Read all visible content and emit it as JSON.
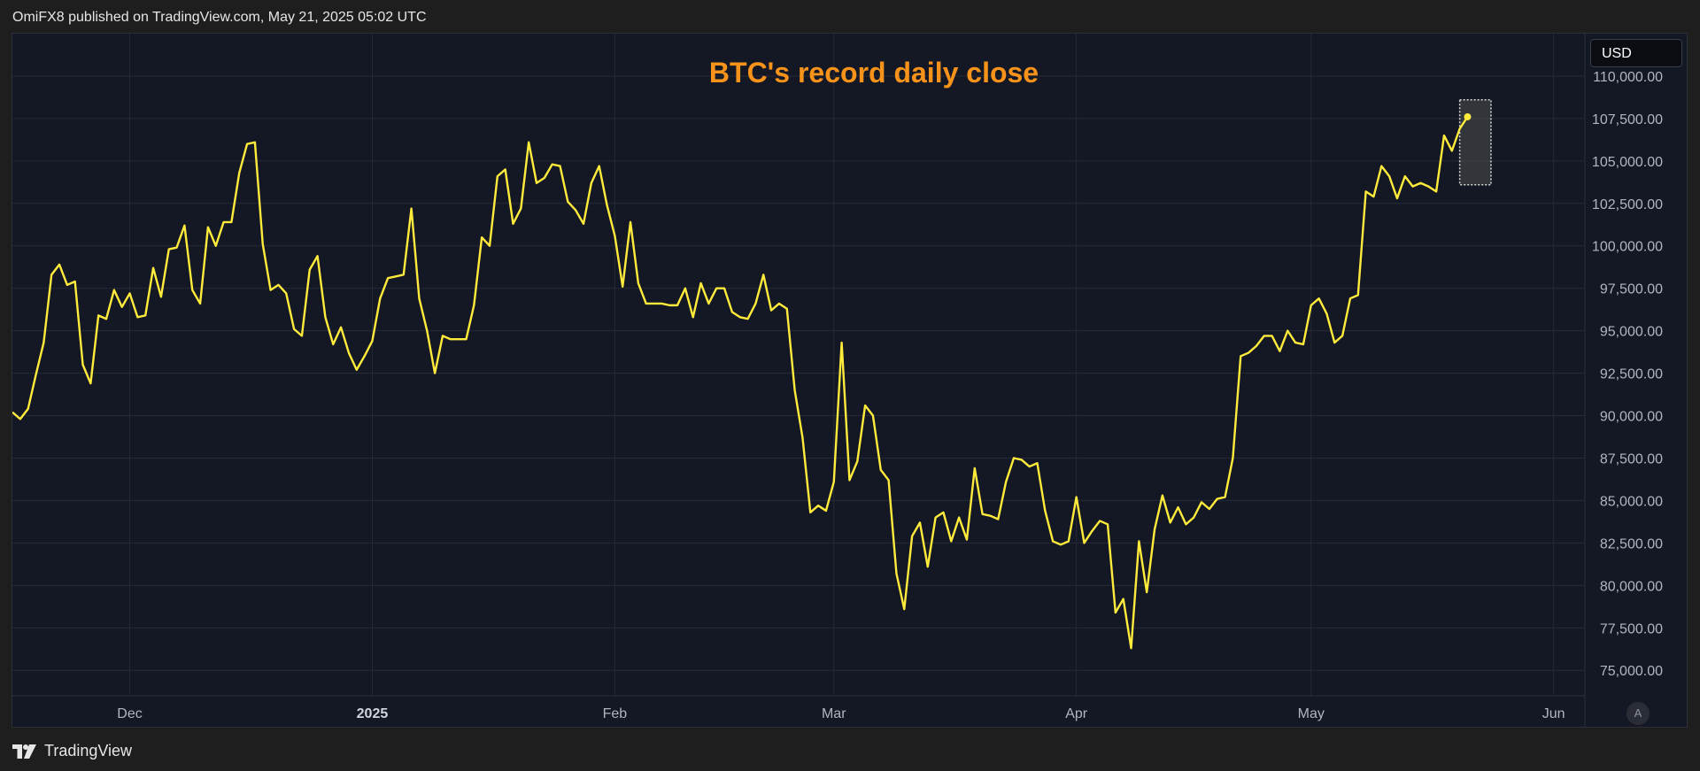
{
  "header": {
    "publisher_line": "OmiFX8 published on TradingView.com, May 21, 2025 05:02 UTC"
  },
  "toolbar": {
    "currency_label": "USD",
    "auto_scale_label": "A"
  },
  "footer": {
    "brand_name": "TradingView"
  },
  "colors": {
    "line": "#ffeb3b",
    "title": "#f7931a",
    "background": "#141824",
    "grid": "#252a36",
    "axis_text": "#b2b5be"
  },
  "chart_data": {
    "type": "line",
    "title": "BTC's record daily close",
    "xlabel": "",
    "ylabel": "",
    "grid": true,
    "x_tick_labels": [
      {
        "date": "2024-12-01",
        "label": "Dec",
        "bold": false
      },
      {
        "date": "2025-01-01",
        "label": "2025",
        "bold": true
      },
      {
        "date": "2025-02-01",
        "label": "Feb",
        "bold": false
      },
      {
        "date": "2025-03-01",
        "label": "Mar",
        "bold": false
      },
      {
        "date": "2025-04-01",
        "label": "Apr",
        "bold": false
      },
      {
        "date": "2025-05-01",
        "label": "May",
        "bold": false
      },
      {
        "date": "2025-06-01",
        "label": "Jun",
        "bold": false
      }
    ],
    "y_ticks": [
      75000,
      77500,
      80000,
      82500,
      85000,
      87500,
      90000,
      92500,
      95000,
      97500,
      100000,
      102500,
      105000,
      107500,
      110000
    ],
    "y_tick_labels": [
      "75,000.00",
      "77,500.00",
      "80,000.00",
      "82,500.00",
      "85,000.00",
      "87,500.00",
      "90,000.00",
      "92,500.00",
      "95,000.00",
      "97,500.00",
      "100,000.00",
      "102,500.00",
      "105,000.00",
      "107,500.00",
      "110,000.00"
    ],
    "xlim": [
      "2024-11-16",
      "2025-06-05"
    ],
    "ylim": [
      73500,
      112500
    ],
    "highlight": {
      "x_start": "2025-05-20",
      "x_end": "2025-05-24",
      "y_low": 103600,
      "y_high": 108600
    },
    "series": [
      {
        "x": [
          "2024-11-16",
          "2024-11-17",
          "2024-11-18",
          "2024-11-19",
          "2024-11-20",
          "2024-11-21",
          "2024-11-22",
          "2024-11-23",
          "2024-11-24",
          "2024-11-25",
          "2024-11-26",
          "2024-11-27",
          "2024-11-28",
          "2024-11-29",
          "2024-11-30",
          "2024-12-01",
          "2024-12-02",
          "2024-12-03",
          "2024-12-04",
          "2024-12-05",
          "2024-12-06",
          "2024-12-07",
          "2024-12-08",
          "2024-12-09",
          "2024-12-10",
          "2024-12-11",
          "2024-12-12",
          "2024-12-13",
          "2024-12-14",
          "2024-12-15",
          "2024-12-16",
          "2024-12-17",
          "2024-12-18",
          "2024-12-19",
          "2024-12-20",
          "2024-12-21",
          "2024-12-22",
          "2024-12-23",
          "2024-12-24",
          "2024-12-25",
          "2024-12-26",
          "2024-12-27",
          "2024-12-28",
          "2024-12-29",
          "2024-12-30",
          "2024-12-31",
          "2025-01-01",
          "2025-01-02",
          "2025-01-03",
          "2025-01-04",
          "2025-01-05",
          "2025-01-06",
          "2025-01-07",
          "2025-01-08",
          "2025-01-09",
          "2025-01-10",
          "2025-01-11",
          "2025-01-12",
          "2025-01-13",
          "2025-01-14",
          "2025-01-15",
          "2025-01-16",
          "2025-01-17",
          "2025-01-18",
          "2025-01-19",
          "2025-01-20",
          "2025-01-21",
          "2025-01-22",
          "2025-01-23",
          "2025-01-24",
          "2025-01-25",
          "2025-01-26",
          "2025-01-27",
          "2025-01-28",
          "2025-01-29",
          "2025-01-30",
          "2025-01-31",
          "2025-02-01",
          "2025-02-02",
          "2025-02-03",
          "2025-02-04",
          "2025-02-05",
          "2025-02-06",
          "2025-02-07",
          "2025-02-08",
          "2025-02-09",
          "2025-02-10",
          "2025-02-11",
          "2025-02-12",
          "2025-02-13",
          "2025-02-14",
          "2025-02-15",
          "2025-02-16",
          "2025-02-17",
          "2025-02-18",
          "2025-02-19",
          "2025-02-20",
          "2025-02-21",
          "2025-02-22",
          "2025-02-23",
          "2025-02-24",
          "2025-02-25",
          "2025-02-26",
          "2025-02-27",
          "2025-02-28",
          "2025-03-01",
          "2025-03-02",
          "2025-03-03",
          "2025-03-04",
          "2025-03-05",
          "2025-03-06",
          "2025-03-07",
          "2025-03-08",
          "2025-03-09",
          "2025-03-10",
          "2025-03-11",
          "2025-03-12",
          "2025-03-13",
          "2025-03-14",
          "2025-03-15",
          "2025-03-16",
          "2025-03-17",
          "2025-03-18",
          "2025-03-19",
          "2025-03-20",
          "2025-03-21",
          "2025-03-22",
          "2025-03-23",
          "2025-03-24",
          "2025-03-25",
          "2025-03-26",
          "2025-03-27",
          "2025-03-28",
          "2025-03-29",
          "2025-03-30",
          "2025-03-31",
          "2025-04-01",
          "2025-04-02",
          "2025-04-03",
          "2025-04-04",
          "2025-04-05",
          "2025-04-06",
          "2025-04-07",
          "2025-04-08",
          "2025-04-09",
          "2025-04-10",
          "2025-04-11",
          "2025-04-12",
          "2025-04-13",
          "2025-04-14",
          "2025-04-15",
          "2025-04-16",
          "2025-04-17",
          "2025-04-18",
          "2025-04-19",
          "2025-04-20",
          "2025-04-21",
          "2025-04-22",
          "2025-04-23",
          "2025-04-24",
          "2025-04-25",
          "2025-04-26",
          "2025-04-27",
          "2025-04-28",
          "2025-04-29",
          "2025-04-30",
          "2025-05-01",
          "2025-05-02",
          "2025-05-03",
          "2025-05-04",
          "2025-05-05",
          "2025-05-06",
          "2025-05-07",
          "2025-05-08",
          "2025-05-09",
          "2025-05-10",
          "2025-05-11",
          "2025-05-12",
          "2025-05-13",
          "2025-05-14",
          "2025-05-15",
          "2025-05-16",
          "2025-05-17",
          "2025-05-18",
          "2025-05-19",
          "2025-05-20",
          "2025-05-21"
        ],
        "values": [
          90200,
          89800,
          90400,
          92400,
          94300,
          98300,
          98900,
          97700,
          97900,
          93000,
          91900,
          95900,
          95700,
          97400,
          96400,
          97200,
          95800,
          95900,
          98700,
          97000,
          99800,
          99900,
          101200,
          97400,
          96600,
          101100,
          100000,
          101400,
          101400,
          104300,
          106000,
          106100,
          100100,
          97400,
          97700,
          97200,
          95100,
          94700,
          98600,
          99400,
          95800,
          94200,
          95200,
          93700,
          92700,
          93500,
          94400,
          96900,
          98100,
          98200,
          98300,
          102200,
          96900,
          95000,
          92500,
          94700,
          94500,
          94500,
          94500,
          96500,
          100500,
          100000,
          104100,
          104500,
          101300,
          102200,
          106100,
          103700,
          104000,
          104800,
          104700,
          102600,
          102100,
          101300,
          103700,
          104700,
          102400,
          100600,
          97600,
          101400,
          97800,
          96600,
          96600,
          96600,
          96500,
          96500,
          97500,
          95800,
          97800,
          96600,
          97500,
          97500,
          96100,
          95800,
          95700,
          96600,
          98300,
          96200,
          96600,
          96300,
          91500,
          88700,
          84300,
          84700,
          84400,
          86100,
          94300,
          86200,
          87300,
          90600,
          90000,
          86800,
          86200,
          80700,
          78600,
          82900,
          83700,
          81100,
          84000,
          84300,
          82600,
          84000,
          82700,
          86900,
          84200,
          84100,
          83900,
          86100,
          87500,
          87400,
          87000,
          87200,
          84400,
          82600,
          82400,
          82600,
          85200,
          82500,
          83200,
          83800,
          83600,
          78400,
          79200,
          76300,
          82600,
          79600,
          83300,
          85300,
          83700,
          84600,
          83600,
          84000,
          84900,
          84500,
          85100,
          85200,
          87500,
          93500,
          93700,
          94100,
          94700,
          94700,
          93800,
          95000,
          94300,
          94200,
          96500,
          96900,
          96000,
          94300,
          94700,
          96900,
          97100,
          103200,
          102900,
          104700,
          104100,
          102800,
          104100,
          103500,
          103700,
          103500,
          103200,
          106500,
          105600,
          106900,
          107600
        ]
      }
    ]
  }
}
